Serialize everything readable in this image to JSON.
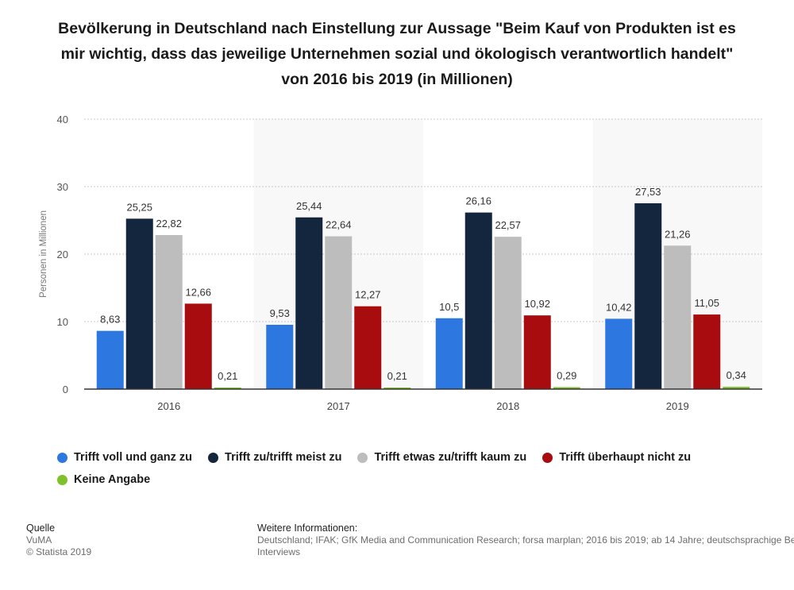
{
  "title": "Bevölkerung in Deutschland nach Einstellung zur Aussage \"Beim Kauf von Produkten ist es mir wichtig, dass das jeweilige Unternehmen sozial und ökologisch verantwortlich handelt\" von 2016 bis 2019 (in Millionen)",
  "chart_data": {
    "type": "bar",
    "title": "Bevölkerung in Deutschland nach Einstellung zur Aussage \"Beim Kauf von Produkten ist es mir wichtig, dass das jeweilige Unternehmen sozial und ökologisch verantwortlich handelt\" von 2016 bis 2019 (in Millionen)",
    "xlabel": "",
    "ylabel": "Personen in Millionen",
    "ylim": [
      0,
      40
    ],
    "yticks": [
      0,
      10,
      20,
      30,
      40
    ],
    "grid": true,
    "legend_position": "bottom",
    "categories": [
      "2016",
      "2017",
      "2018",
      "2019"
    ],
    "series": [
      {
        "name": "Trifft voll und ganz zu",
        "color": "#2c78e0",
        "values": [
          8.63,
          9.53,
          10.5,
          10.42
        ],
        "labels": [
          "8,63",
          "9,53",
          "10,5",
          "10,42"
        ]
      },
      {
        "name": "Trifft zu/trifft meist zu",
        "color": "#14263e",
        "values": [
          25.25,
          25.44,
          26.16,
          27.53
        ],
        "labels": [
          "25,25",
          "25,44",
          "26,16",
          "27,53"
        ]
      },
      {
        "name": "Trifft etwas zu/trifft kaum zu",
        "color": "#bdbdbd",
        "values": [
          22.82,
          22.64,
          22.57,
          21.26
        ],
        "labels": [
          "22,82",
          "22,64",
          "22,57",
          "21,26"
        ]
      },
      {
        "name": "Trifft überhaupt nicht zu",
        "color": "#a90c0f",
        "values": [
          12.66,
          12.27,
          10.92,
          11.05
        ],
        "labels": [
          "12,66",
          "12,27",
          "10,92",
          "11,05"
        ]
      },
      {
        "name": "Keine Angabe",
        "color": "#7ec12b",
        "values": [
          0.21,
          0.21,
          0.29,
          0.34
        ],
        "labels": [
          "0,21",
          "0,21",
          "0,29",
          "0,34"
        ]
      }
    ]
  },
  "source": {
    "heading": "Quelle",
    "lines": [
      "VuMA",
      "© Statista 2019"
    ]
  },
  "info": {
    "heading": "Weitere Informationen:",
    "lines": [
      "Deutschland; IFAK; GfK Media and Communication Research; forsa marplan; 2016 bis 2019; ab 14 Jahre; deutschsprachige Bevölkerung; Persönliche Interviews",
      "Interviews"
    ]
  }
}
